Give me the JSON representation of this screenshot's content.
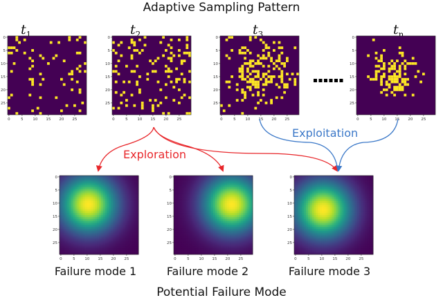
{
  "top_title": "Adaptive Sampling Pattern",
  "bottom_title": "Potential Failure Mode",
  "time_labels": [
    {
      "var": "t",
      "sub": "1"
    },
    {
      "var": "t",
      "sub": "2"
    },
    {
      "var": "t",
      "sub": "3"
    },
    {
      "var": "t",
      "sub": "n"
    }
  ],
  "ellipsis": "······",
  "exploration_label": "Exploration",
  "exploitation_label": "Exploitation",
  "failure_labels": [
    "Failure mode 1",
    "Failure mode 2",
    "Failure mode 3"
  ],
  "axis": {
    "x_ticks": [
      "0",
      "5",
      "10",
      "15",
      "20",
      "25"
    ],
    "y_ticks": [
      "0",
      "5",
      "10",
      "15",
      "20",
      "25"
    ]
  },
  "colors": {
    "background": "#440154",
    "sample": "#fde725",
    "exploration": "#e8262a",
    "exploitation": "#3b78c8"
  },
  "sampling_patterns": [
    {
      "grid": 30,
      "density": "sparse-uniform"
    },
    {
      "grid": 30,
      "density": "sparse-uniform"
    },
    {
      "grid": 30,
      "density": "concentrated-center"
    },
    {
      "grid": 30,
      "density": "highly-concentrated-center"
    }
  ],
  "failure_modes": [
    {
      "peak": [
        11,
        11
      ]
    },
    {
      "peak": [
        22,
        11
      ]
    },
    {
      "peak": [
        11,
        13
      ]
    }
  ]
}
